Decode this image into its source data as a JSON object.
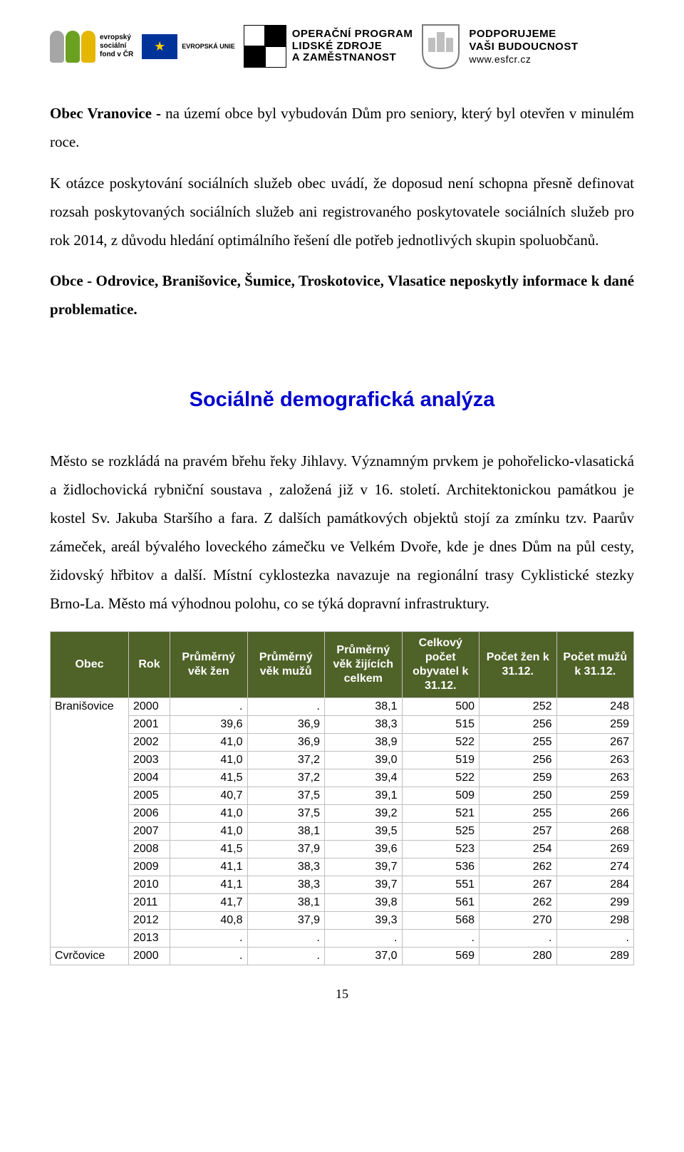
{
  "logos": {
    "esf": {
      "lines": [
        "evropský",
        "sociální",
        "fond v ČR"
      ]
    },
    "eu": {
      "label": "EVROPSKÁ UNIE"
    },
    "op": {
      "line1": "OPERAČNÍ PROGRAM",
      "line2": "LIDSKÉ ZDROJE",
      "line3": "A ZAMĚSTNANOST"
    },
    "support": {
      "line1": "PODPORUJEME",
      "line2": "VAŠI BUDOUCNOST",
      "url": "www.esfcr.cz"
    }
  },
  "paragraphs": {
    "p1_lead": "Obec Vranovice - ",
    "p1_rest": "na území obce byl vybudován Dům pro seniory, který byl otevřen v minulém roce.",
    "p2": "K otázce poskytování sociálních služeb obec uvádí, že doposud není schopna přesně definovat rozsah poskytovaných sociálních služeb ani registrovaného poskytovatele sociálních služeb pro rok 2014, z důvodu hledání optimálního řešení dle potřeb jednotlivých skupin spoluobčanů.",
    "p3": "Obce - Odrovice, Branišovice, Šumice, Troskotovice, Vlasatice neposkytly informace k dané problematice.",
    "section_title": "Sociálně demografická analýza",
    "p4": "Město se rozkládá na pravém břehu řeky Jihlavy. Významným prvkem je pohořelicko-vlasatická a židlochovická rybniční soustava , založená již v 16. století.  Architektonickou památkou je kostel Sv. Jakuba Staršího a fara. Z dalších památkových objektů stojí za zmínku tzv. Paarův zámeček, areál bývalého loveckého zámečku ve Velkém Dvoře, kde je dnes Dům na půl cesty, židovský hřbitov a další. Místní cyklostezka navazuje na regionální trasy Cyklistické stezky Brno-La. Město má výhodnou polohu, co se týká dopravní infrastruktury."
  },
  "table": {
    "headers": {
      "obec": "Obec",
      "rok": "Rok",
      "vek_zen": "Průměrný věk žen",
      "vek_muzu": "Průměrný věk mužů",
      "vek_celkem": "Průměrný věk žijících celkem",
      "pocet_celkem": "Celkový počet obyvatel k 31.12.",
      "pocet_zen": "Počet žen k 31.12.",
      "pocet_muzu": "Počet mužů k 31.12."
    },
    "groups": [
      {
        "obec": "Branišovice",
        "rows": [
          {
            "rok": "2000",
            "vz": ".",
            "vm": ".",
            "vc": "38,1",
            "ct": "500",
            "cz": "252",
            "cm": "248"
          },
          {
            "rok": "2001",
            "vz": "39,6",
            "vm": "36,9",
            "vc": "38,3",
            "ct": "515",
            "cz": "256",
            "cm": "259"
          },
          {
            "rok": "2002",
            "vz": "41,0",
            "vm": "36,9",
            "vc": "38,9",
            "ct": "522",
            "cz": "255",
            "cm": "267"
          },
          {
            "rok": "2003",
            "vz": "41,0",
            "vm": "37,2",
            "vc": "39,0",
            "ct": "519",
            "cz": "256",
            "cm": "263"
          },
          {
            "rok": "2004",
            "vz": "41,5",
            "vm": "37,2",
            "vc": "39,4",
            "ct": "522",
            "cz": "259",
            "cm": "263"
          },
          {
            "rok": "2005",
            "vz": "40,7",
            "vm": "37,5",
            "vc": "39,1",
            "ct": "509",
            "cz": "250",
            "cm": "259"
          },
          {
            "rok": "2006",
            "vz": "41,0",
            "vm": "37,5",
            "vc": "39,2",
            "ct": "521",
            "cz": "255",
            "cm": "266"
          },
          {
            "rok": "2007",
            "vz": "41,0",
            "vm": "38,1",
            "vc": "39,5",
            "ct": "525",
            "cz": "257",
            "cm": "268"
          },
          {
            "rok": "2008",
            "vz": "41,5",
            "vm": "37,9",
            "vc": "39,6",
            "ct": "523",
            "cz": "254",
            "cm": "269"
          },
          {
            "rok": "2009",
            "vz": "41,1",
            "vm": "38,3",
            "vc": "39,7",
            "ct": "536",
            "cz": "262",
            "cm": "274"
          },
          {
            "rok": "2010",
            "vz": "41,1",
            "vm": "38,3",
            "vc": "39,7",
            "ct": "551",
            "cz": "267",
            "cm": "284"
          },
          {
            "rok": "2011",
            "vz": "41,7",
            "vm": "38,1",
            "vc": "39,8",
            "ct": "561",
            "cz": "262",
            "cm": "299"
          },
          {
            "rok": "2012",
            "vz": "40,8",
            "vm": "37,9",
            "vc": "39,3",
            "ct": "568",
            "cz": "270",
            "cm": "298"
          },
          {
            "rok": "2013",
            "vz": ".",
            "vm": ".",
            "vc": ".",
            "ct": ".",
            "cz": ".",
            "cm": "."
          }
        ]
      },
      {
        "obec": "Cvrčovice",
        "rows": [
          {
            "rok": "2000",
            "vz": ".",
            "vm": ".",
            "vc": "37,0",
            "ct": "569",
            "cz": "280",
            "cm": "289"
          }
        ]
      }
    ]
  },
  "page_number": "15",
  "styles": {
    "header_bg": "#4f6228",
    "header_fg": "#ffffff",
    "border": "#bfbfbf",
    "title_color": "#0000cc",
    "esf_colors": [
      "#a6a6a6",
      "#6aa121",
      "#e5b700"
    ]
  }
}
